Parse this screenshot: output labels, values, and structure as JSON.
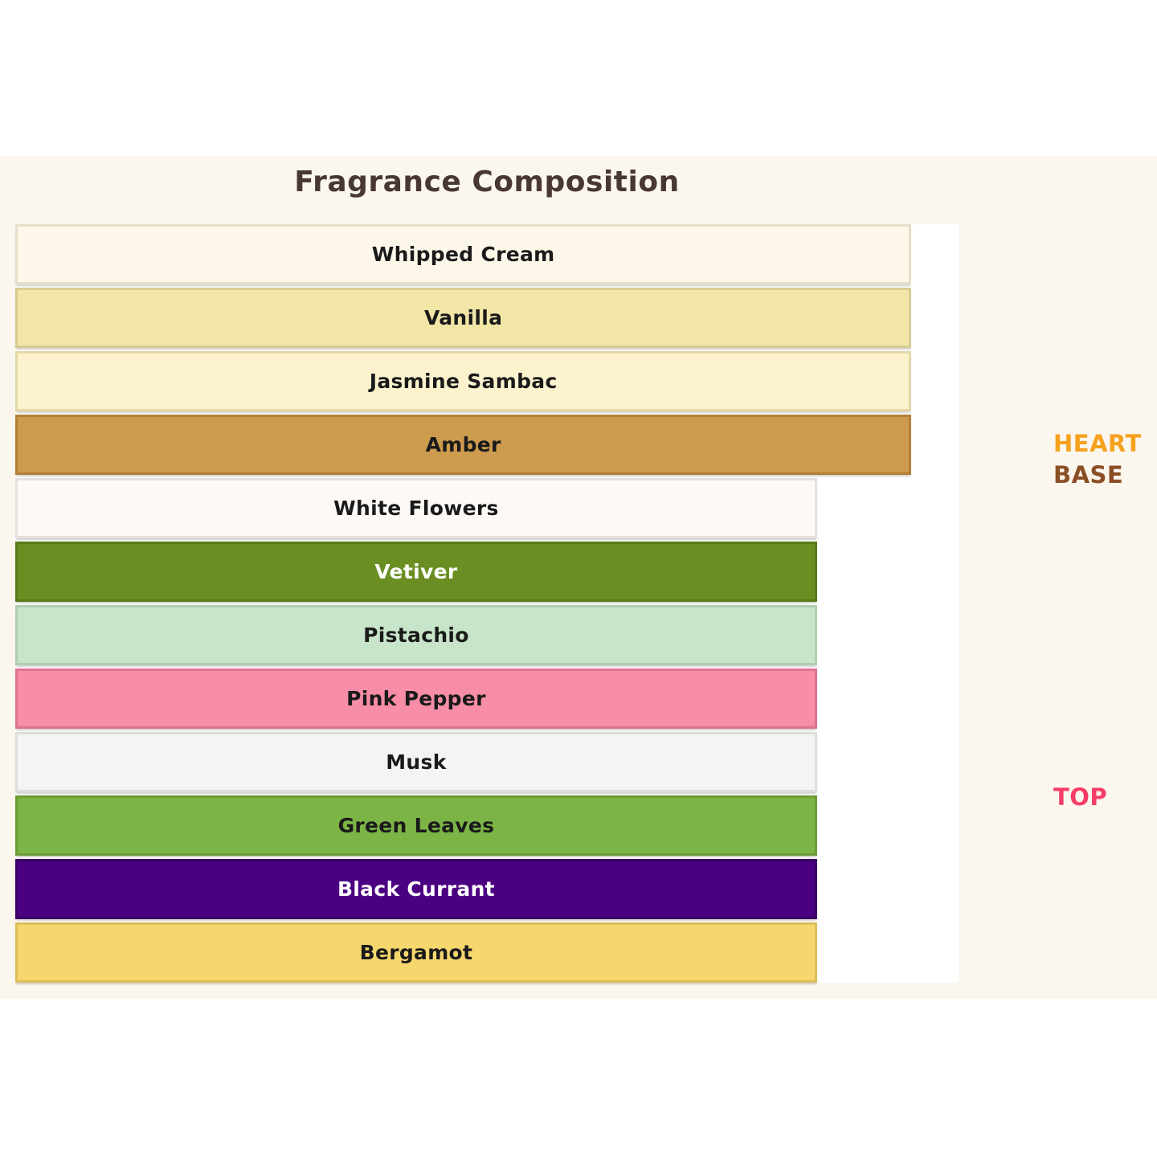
{
  "title": "Fragrance Composition",
  "colors": {
    "page_background": "#FFFFFF",
    "band_background": "#FBF6EE",
    "plot_background": "#FFFFFF",
    "title_text": "#483832",
    "heart_label": "#F5A11D",
    "base_label": "#8B4F26",
    "top_label": "#F53D67"
  },
  "group_labels": [
    {
      "label": "HEART",
      "color": "#F5A11D"
    },
    {
      "label": "BASE",
      "color": "#8B4F26"
    },
    {
      "label": "TOP",
      "color": "#F53D67"
    }
  ],
  "chart_data": {
    "type": "bar",
    "orientation": "horizontal",
    "title": "Fragrance Composition",
    "xlabel": "",
    "ylabel": "",
    "xlim": [
      0,
      100
    ],
    "grid": false,
    "legend": false,
    "categories": [
      "Whipped Cream",
      "Vanilla",
      "Jasmine Sambac",
      "Amber",
      "White Flowers",
      "Vetiver",
      "Pistachio",
      "Pink Pepper",
      "Musk",
      "Green Leaves",
      "Black Currant",
      "Bergamot"
    ],
    "values": [
      95,
      95,
      95,
      95,
      85,
      85,
      85,
      85,
      85,
      85,
      85,
      85
    ],
    "annotations": [
      "HEART",
      "BASE",
      "TOP"
    ],
    "notes": [
      {
        "label": "Whipped Cream",
        "value": 95,
        "fill": "#FCF7E8",
        "border": "#E6DFC8",
        "text": "#1a1a1a"
      },
      {
        "label": "Vanilla",
        "value": 95,
        "fill": "#F2E6A7",
        "border": "#D8CB92",
        "text": "#1a1a1a"
      },
      {
        "label": "Jasmine Sambac",
        "value": 95,
        "fill": "#FCF3CE",
        "border": "#E2D8A6",
        "text": "#1a1a1a"
      },
      {
        "label": "Amber",
        "value": 95,
        "fill": "#CD9B4D",
        "border": "#B28036",
        "text": "#1a1a1a"
      },
      {
        "label": "White Flowers",
        "value": 85,
        "fill": "#FDF9F6",
        "border": "#E6E1DE",
        "text": "#1a1a1a"
      },
      {
        "label": "Vetiver",
        "value": 85,
        "fill": "#6A8E22",
        "border": "#587A1B",
        "text": "#ffffff"
      },
      {
        "label": "Pistachio",
        "value": 85,
        "fill": "#C8E4C9",
        "border": "#AECFAF",
        "text": "#1a1a1a"
      },
      {
        "label": "Pink Pepper",
        "value": 85,
        "fill": "#F78DA7",
        "border": "#DE7291",
        "text": "#1a1a1a"
      },
      {
        "label": "Musk",
        "value": 85,
        "fill": "#F4F4F3",
        "border": "#DEDEDC",
        "text": "#1a1a1a"
      },
      {
        "label": "Green Leaves",
        "value": 85,
        "fill": "#7CB446",
        "border": "#6A9C36",
        "text": "#1a1a1a"
      },
      {
        "label": "Black Currant",
        "value": 85,
        "fill": "#4B0082",
        "border": "#3A0066",
        "text": "#ffffff"
      },
      {
        "label": "Bergamot",
        "value": 85,
        "fill": "#F5D76E",
        "border": "#DCBE59",
        "text": "#1a1a1a"
      }
    ]
  }
}
